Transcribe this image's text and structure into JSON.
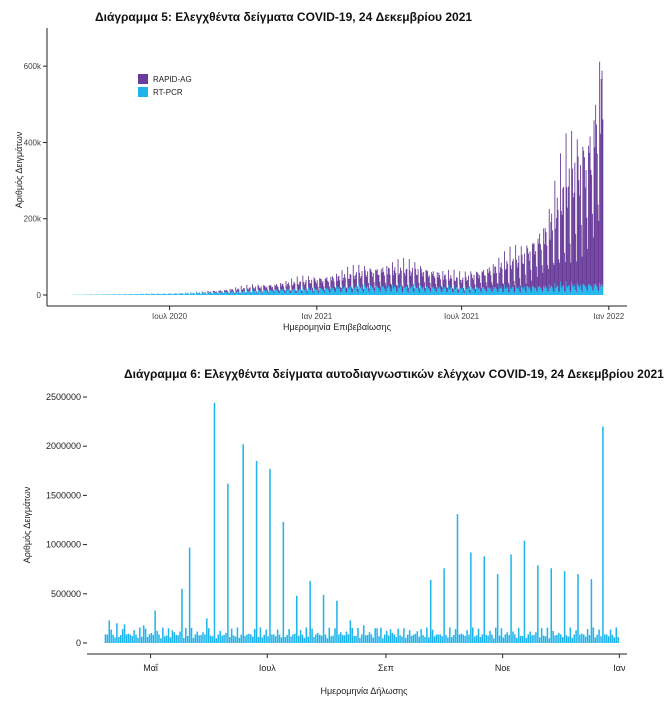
{
  "chart_data": [
    {
      "type": "bar",
      "title": "Διάγραμμα 5: Ελεγχθέντα δείγματα COVID-19, 24 Δεκεμβρίου 2021",
      "xlabel": "Ημερομηνία Επιβεβαίωσης",
      "ylabel": "Αριθμός Δειγμάτων",
      "stacked": true,
      "xlim": [
        "2020-02-15",
        "2022-01-15"
      ],
      "ylim": [
        0,
        700000
      ],
      "y_ticks": [
        0,
        200000,
        400000,
        600000
      ],
      "y_tick_labels": [
        "0",
        "200k",
        "400k",
        "600k"
      ],
      "x_ticks": [
        "2020-07-01",
        "2021-01-01",
        "2021-07-01",
        "2022-01-01"
      ],
      "x_tick_labels": [
        "Ιουλ 2020",
        "Ιαν 2021",
        "Ιουλ 2021",
        "Ιαν 2022"
      ],
      "legend_position": "top-left",
      "series": [
        {
          "name": "RT-PCR",
          "color": "#1fb5ec",
          "points": [
            [
              "2020-03-01",
              500
            ],
            [
              "2020-05-01",
              2000
            ],
            [
              "2020-07-01",
              4000
            ],
            [
              "2020-09-01",
              8000
            ],
            [
              "2020-11-01",
              14000
            ],
            [
              "2021-01-01",
              18000
            ],
            [
              "2021-03-01",
              25000
            ],
            [
              "2021-05-01",
              24000
            ],
            [
              "2021-07-01",
              20000
            ],
            [
              "2021-09-01",
              22000
            ],
            [
              "2021-10-15",
              24000
            ],
            [
              "2021-11-15",
              28000
            ],
            [
              "2021-12-24",
              30000
            ]
          ]
        },
        {
          "name": "RAPID-AG",
          "color": "#6a3d9a",
          "points": [
            [
              "2020-03-01",
              0
            ],
            [
              "2020-08-01",
              0
            ],
            [
              "2020-11-01",
              12000
            ],
            [
              "2021-01-01",
              25000
            ],
            [
              "2021-02-15",
              35000
            ],
            [
              "2021-04-01",
              50000
            ],
            [
              "2021-05-15",
              45000
            ],
            [
              "2021-07-01",
              25000
            ],
            [
              "2021-08-15",
              60000
            ],
            [
              "2021-09-15",
              85000
            ],
            [
              "2021-10-15",
              160000
            ],
            [
              "2021-11-10",
              300000
            ],
            [
              "2021-11-25",
              340000
            ],
            [
              "2021-12-10",
              400000
            ],
            [
              "2021-12-24",
              600000
            ]
          ]
        }
      ]
    },
    {
      "type": "bar",
      "title": "Διάγραμμα 6: Ελεγχθέντα δείγματα αυτοδιαγνωστικών ελέγχων COVID-19, 24 Δεκεμβρίου 2021",
      "xlabel": "Ημερομηνία Δήλωσης",
      "ylabel": "Αριθμός Δειγμάτων",
      "xlim": [
        "2021-04-03",
        "2022-01-05"
      ],
      "ylim": [
        0,
        2500000
      ],
      "y_ticks": [
        0,
        500000,
        1000000,
        1500000,
        2000000,
        2500000
      ],
      "y_tick_labels": [
        "0",
        "500000",
        "1000000",
        "1500000",
        "2000000",
        "2500000"
      ],
      "x_ticks": [
        "2021-05-01",
        "2021-07-01",
        "2021-09-01",
        "2021-11-01",
        "2022-01-01"
      ],
      "x_tick_labels": [
        "Μαΐ",
        "Ιουλ",
        "Σεπ",
        "Νοε",
        "Ιαν"
      ],
      "color": "#1fb5ec",
      "peaks": [
        [
          "2021-04-09",
          230000
        ],
        [
          "2021-04-13",
          200000
        ],
        [
          "2021-04-17",
          190000
        ],
        [
          "2021-04-27",
          180000
        ],
        [
          "2021-05-03",
          330000
        ],
        [
          "2021-05-12",
          130000
        ],
        [
          "2021-05-17",
          550000
        ],
        [
          "2021-05-21",
          970000
        ],
        [
          "2021-05-30",
          250000
        ],
        [
          "2021-06-03",
          2440000
        ],
        [
          "2021-06-10",
          1620000
        ],
        [
          "2021-06-18",
          2020000
        ],
        [
          "2021-06-25",
          1850000
        ],
        [
          "2021-07-02",
          1770000
        ],
        [
          "2021-07-09",
          1230000
        ],
        [
          "2021-07-16",
          480000
        ],
        [
          "2021-07-23",
          630000
        ],
        [
          "2021-07-30",
          490000
        ],
        [
          "2021-08-06",
          430000
        ],
        [
          "2021-08-13",
          230000
        ],
        [
          "2021-08-20",
          180000
        ],
        [
          "2021-08-27",
          150000
        ],
        [
          "2021-09-03",
          140000
        ],
        [
          "2021-09-10",
          150000
        ],
        [
          "2021-09-17",
          120000
        ],
        [
          "2021-09-24",
          640000
        ],
        [
          "2021-10-01",
          760000
        ],
        [
          "2021-10-08",
          1310000
        ],
        [
          "2021-10-15",
          920000
        ],
        [
          "2021-10-22",
          880000
        ],
        [
          "2021-10-29",
          700000
        ],
        [
          "2021-11-05",
          900000
        ],
        [
          "2021-11-12",
          1040000
        ],
        [
          "2021-11-19",
          790000
        ],
        [
          "2021-11-26",
          760000
        ],
        [
          "2021-12-03",
          730000
        ],
        [
          "2021-12-10",
          700000
        ],
        [
          "2021-12-17",
          650000
        ],
        [
          "2021-12-23",
          2200000
        ]
      ],
      "baseline": 80000
    }
  ]
}
